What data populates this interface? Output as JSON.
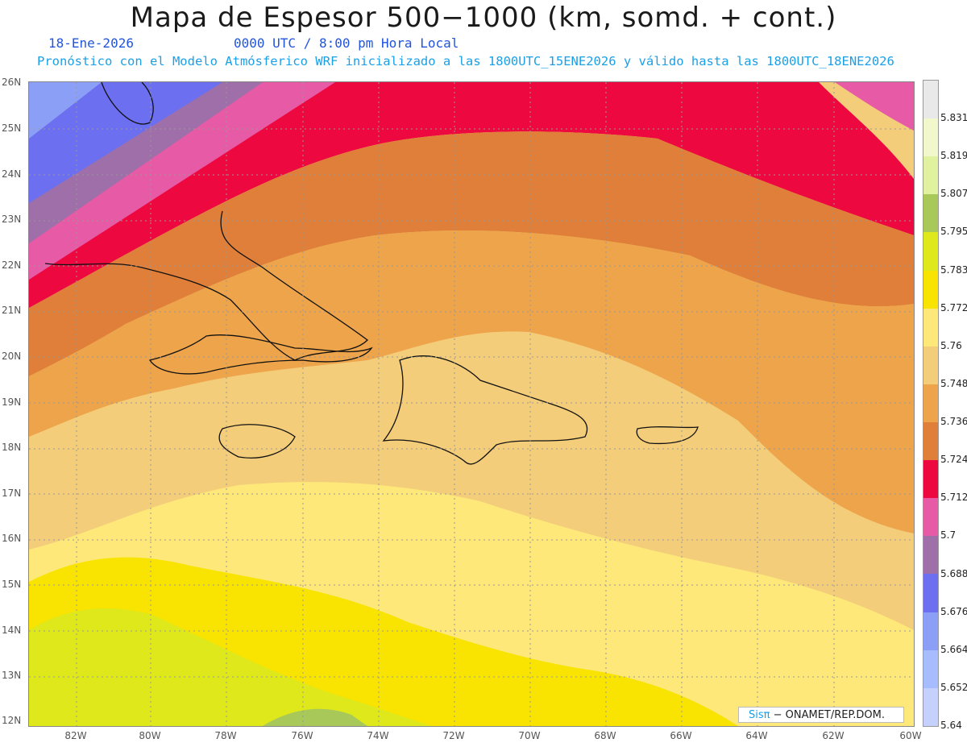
{
  "title": "Mapa de Espesor 500−1000 (km, somd. + cont.)",
  "date": "18-Ene-2026",
  "time": "0000 UTC / 8:00 pm Hora Local",
  "info": "Pronóstico con el Modelo Atmósferico WRF inicializado a las 1800UTC_15ENE2026 y válido hasta las  1800UTC_18ENE2026",
  "credit": {
    "brand": "Sisπ",
    "text": " − ONAMET/REP.DOM."
  },
  "lat_labels": [
    "26N",
    "25N",
    "24N",
    "23N",
    "22N",
    "21N",
    "20N",
    "19N",
    "18N",
    "17N",
    "16N",
    "15N",
    "14N",
    "13N",
    "12N"
  ],
  "lon_labels": [
    "82W",
    "80W",
    "78W",
    "76W",
    "74W",
    "72W",
    "70W",
    "68W",
    "66W",
    "64W",
    "62W",
    "60W"
  ],
  "colorbar": {
    "labels": [
      "5.831",
      "5.819",
      "5.807",
      "5.795",
      "5.783",
      "5.772",
      "5.76",
      "5.748",
      "5.736",
      "5.724",
      "5.712",
      "5.7",
      "5.688",
      "5.676",
      "5.664",
      "5.652",
      "5.64"
    ],
    "colors": [
      "#e9e9e9",
      "#f2f7cc",
      "#e0f2a0",
      "#a8c85a",
      "#dfe81a",
      "#f8e400",
      "#fde879",
      "#f4cd7a",
      "#eda44a",
      "#df7f39",
      "#ee0840",
      "#e75aa5",
      "#9f6fa9",
      "#6b6ff0",
      "#8a9ff5",
      "#a7bcfc",
      "#c5d1fc"
    ]
  }
}
